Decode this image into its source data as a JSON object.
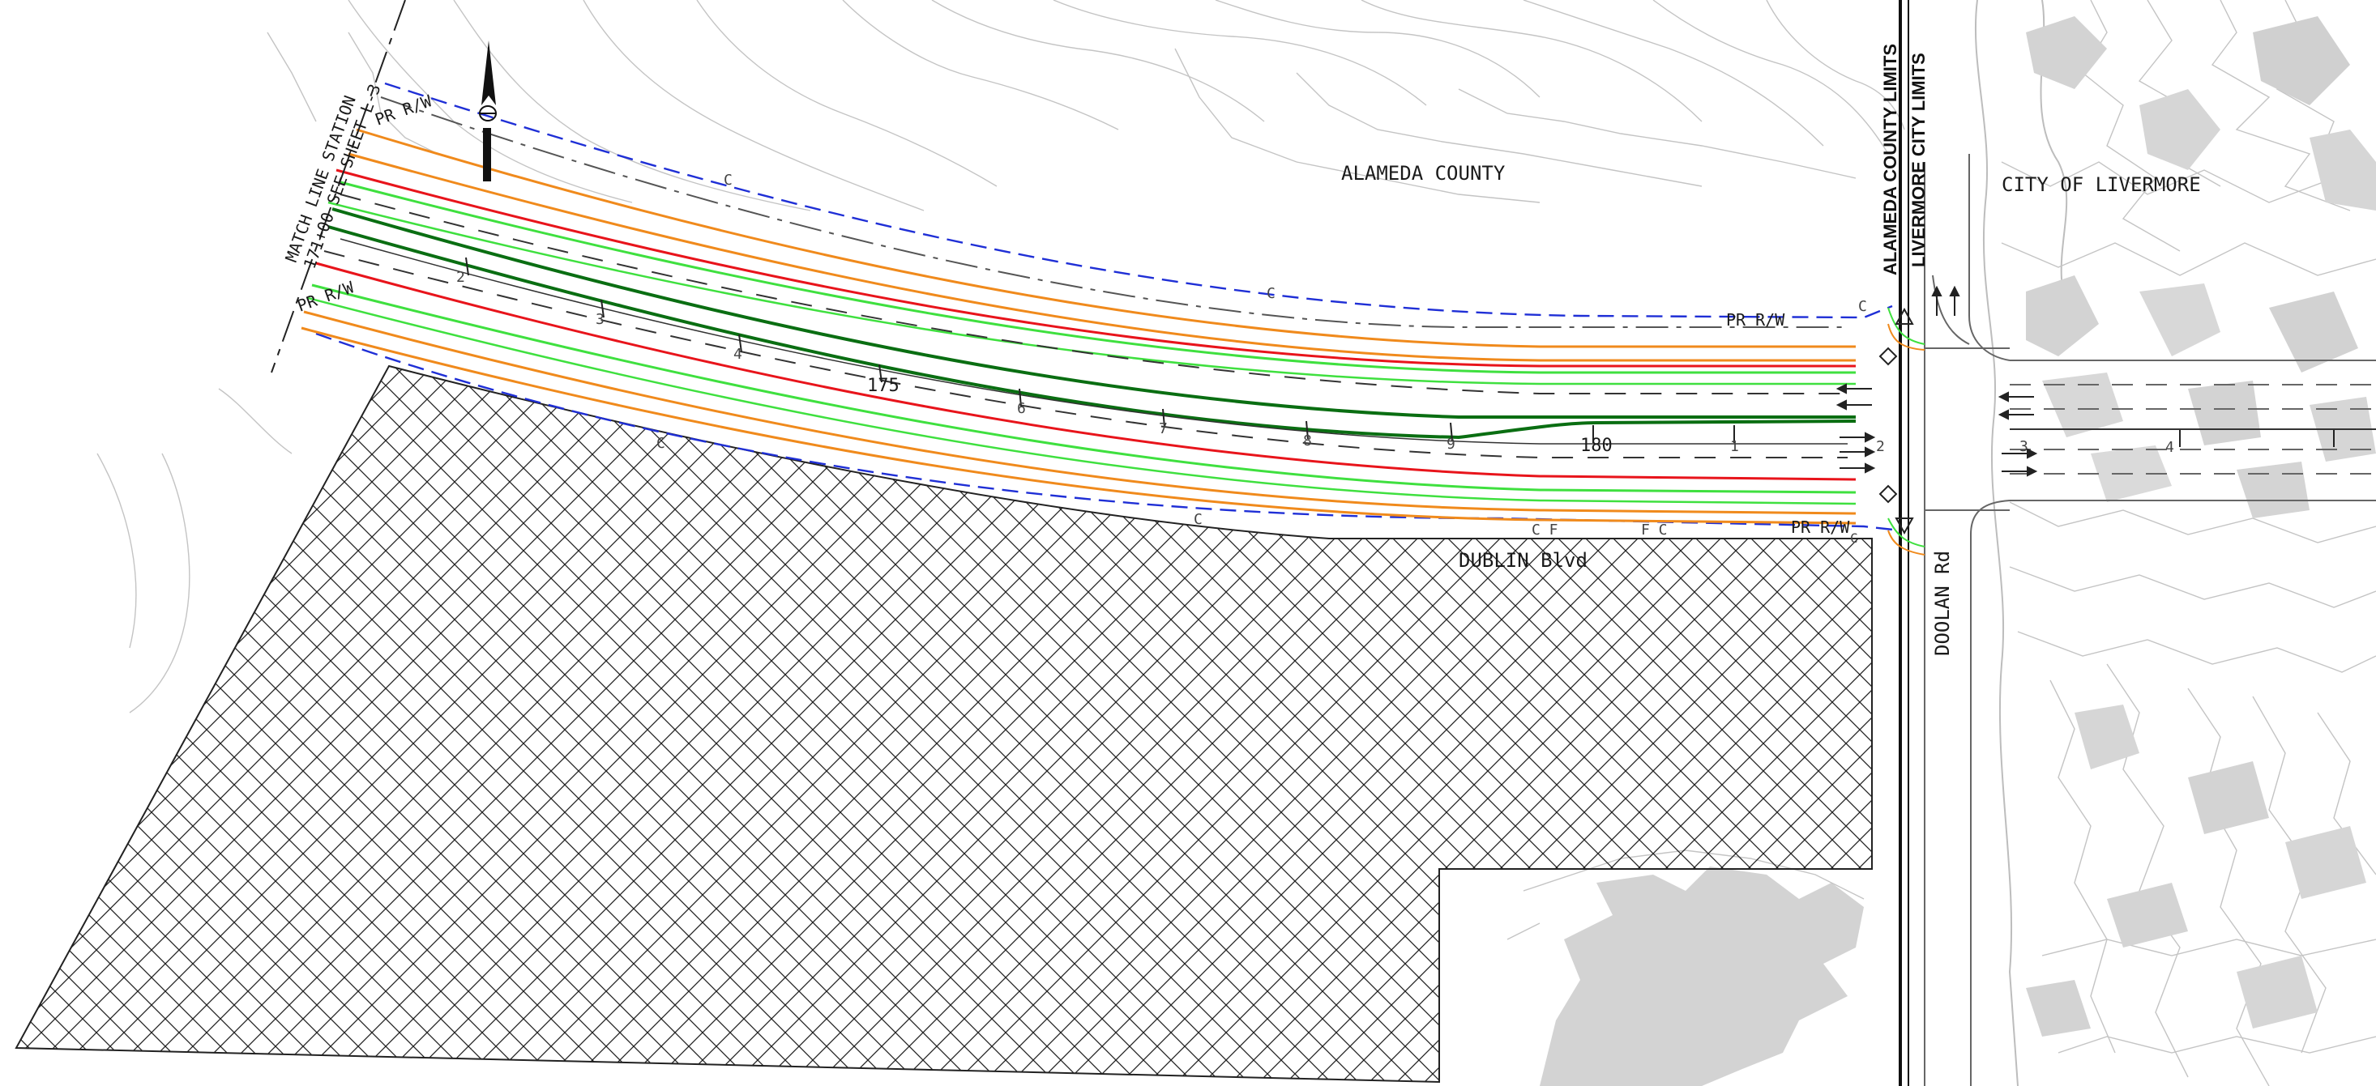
{
  "drawing": {
    "match_line_1": "MATCH LINE STATION",
    "match_line_2": "171+00 SEE SHEET L-3",
    "county_label": "ALAMEDA COUNTY",
    "city_label": "CITY OF LIVERMORE",
    "county_limits": "ALAMEDA COUNTY LIMITS",
    "city_limits": "LIVERMORE CITY LIMITS",
    "road_name": "DUBLIN Blvd",
    "cross_street": "DOOLAN Rd",
    "row_north_left": "PR R/W",
    "row_south_left": "PR R/W",
    "row_north_right": "PR R/W",
    "row_south_right": "PR R/W",
    "station_175": "175",
    "station_180": "180",
    "ticks_main": [
      "2",
      "3",
      "4",
      "6",
      "7",
      "8",
      "9"
    ],
    "ticks_east": [
      "1",
      "2"
    ],
    "ticks_far": [
      "3",
      "4"
    ],
    "c_marks": [
      "C",
      "C",
      "C",
      "C",
      "C",
      "C",
      "C"
    ],
    "f_marks": [
      "C F",
      "F C"
    ]
  },
  "colors": {
    "row_line": "#1f2fd6",
    "edge_orange": "#f08a1c",
    "edge_green": "#3fe03f",
    "edge_red": "#e8141b",
    "median_darkgreen": "#0a6e12",
    "hatch": "#222222",
    "contour": "#c4c4c4",
    "mass_gray": "#d3d3d3"
  },
  "icons": [
    "north-arrow-icon",
    "lane-arrow-icon"
  ]
}
